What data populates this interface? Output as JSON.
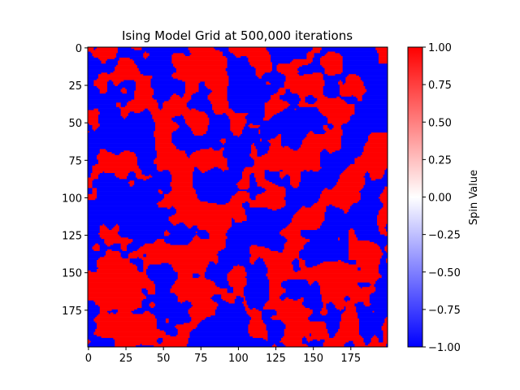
{
  "chart_data": {
    "type": "heatmap",
    "title": "Ising Model Grid at 500,000 iterations",
    "xlabel": "",
    "ylabel": "",
    "grid_size": 200,
    "xlim": [
      0,
      199
    ],
    "ylim": [
      199,
      0
    ],
    "x_ticks": [
      0,
      25,
      50,
      75,
      100,
      125,
      150,
      175
    ],
    "y_ticks": [
      0,
      25,
      50,
      75,
      100,
      125,
      150,
      175
    ],
    "x_tick_labels": [
      "0",
      "25",
      "50",
      "75",
      "100",
      "125",
      "150",
      "175"
    ],
    "y_tick_labels": [
      "0",
      "25",
      "50",
      "75",
      "100",
      "125",
      "150",
      "175"
    ],
    "values_description": "spin values in {-1, +1}; red = +1, blue = -1; clustered domain pattern",
    "colormap": "bwr",
    "colorbar": {
      "label": "Spin Value",
      "vmin": -1.0,
      "vmax": 1.0,
      "ticks": [
        1.0,
        0.75,
        0.5,
        0.25,
        0.0,
        -0.25,
        -0.5,
        -0.75,
        -1.0
      ],
      "tick_labels": [
        "1.00",
        "0.75",
        "0.50",
        "0.25",
        "0.00",
        "−0.25",
        "−0.50",
        "−0.75",
        "−1.00"
      ]
    },
    "colors": {
      "positive": "#ff0000",
      "negative": "#0000ff",
      "zero": "#ffffff"
    }
  }
}
